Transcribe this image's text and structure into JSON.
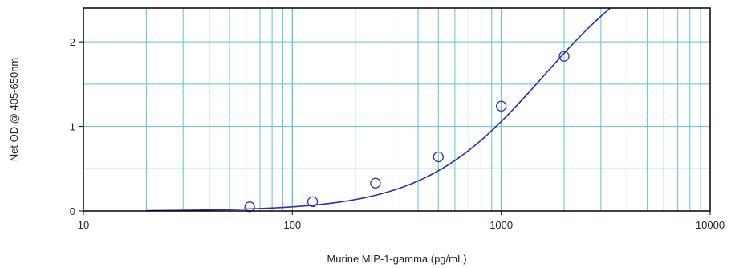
{
  "chart_data": {
    "type": "scatter",
    "title": "",
    "xlabel": "Murine MIP-1-gamma (pg/mL)",
    "ylabel": "Net OD @ 405-650nm",
    "x_scale": "log",
    "xlim": [
      10,
      10000
    ],
    "ylim": [
      0,
      2.4
    ],
    "grid": true,
    "x_ticks": [
      {
        "value": 10,
        "label": "10"
      },
      {
        "value": 100,
        "label": "100"
      },
      {
        "value": 1000,
        "label": "1000"
      },
      {
        "value": 10000,
        "label": "10000"
      }
    ],
    "y_ticks": [
      {
        "value": 0,
        "label": "0"
      },
      {
        "value": 1,
        "label": "1"
      },
      {
        "value": 2,
        "label": "2"
      }
    ],
    "series": [
      {
        "points": [
          {
            "x": 62.5,
            "y": 0.05
          },
          {
            "x": 125,
            "y": 0.11
          },
          {
            "x": 250,
            "y": 0.33
          },
          {
            "x": 500,
            "y": 0.64
          },
          {
            "x": 1000,
            "y": 1.24
          },
          {
            "x": 2000,
            "y": 1.83
          }
        ]
      }
    ],
    "fit_curve": {
      "type": "4PL",
      "bottom": 0.0,
      "top": 3.2,
      "ec50": 1600,
      "hill": 1.5,
      "x_range": [
        20,
        5000
      ]
    },
    "colors": {
      "grid": "#5fc1dc",
      "curve": "#2b2bb8",
      "markers": "#2b2bb8",
      "frame": "#000000"
    }
  }
}
